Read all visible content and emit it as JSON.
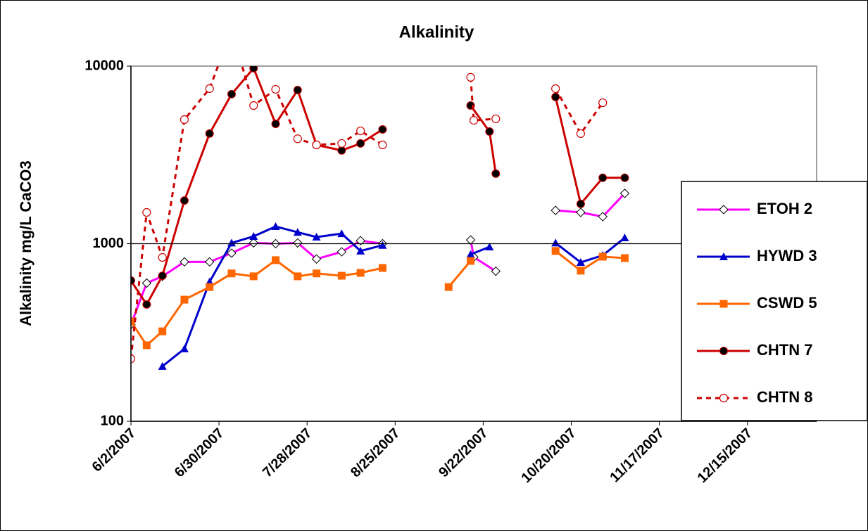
{
  "chart_data": {
    "type": "line",
    "title": "Alkalinity",
    "y_label": "Alkalinity mg/L CaCO3",
    "log_y": true,
    "grid": true,
    "legend": "right",
    "xlim": [
      "6/2/2007",
      "1/6/2008"
    ],
    "xticks": [
      "6/2/2007",
      "6/30/2007",
      "7/28/2007",
      "8/25/2007",
      "9/22/2007",
      "10/20/2007",
      "11/17/2007",
      "12/15/2007"
    ],
    "ylim": [
      100,
      10000
    ],
    "yticks": [
      100,
      1000,
      10000
    ],
    "series": [
      {
        "name": "ETOH 2",
        "color": "#ff00ff",
        "marker": "diamond",
        "dashed": false,
        "x": [
          "6/2/2007",
          "6/7/2007",
          "6/12/2007",
          "6/19/2007",
          "6/27/2007",
          "7/4/2007",
          "7/11/2007",
          "7/18/2007",
          "7/25/2007",
          "7/31/2007",
          "8/8/2007",
          "8/14/2007",
          "8/21/2007",
          null,
          "9/18/2007",
          "9/19/2007",
          "9/26/2007",
          null,
          "10/15/2007",
          "10/23/2007",
          "10/30/2007",
          "11/6/2007"
        ],
        "values": [
          350,
          600,
          655,
          790,
          790,
          885,
          1010,
          1000,
          1010,
          820,
          900,
          1040,
          1000,
          null,
          1050,
          840,
          700,
          null,
          1540,
          1500,
          1420,
          1920
        ]
      },
      {
        "name": "HYWD 3",
        "color": "#0000cc",
        "marker": "triangle",
        "dashed": false,
        "x": [
          "6/12/2007",
          "6/19/2007",
          "6/27/2007",
          "7/4/2007",
          "7/11/2007",
          "7/18/2007",
          "7/25/2007",
          "7/31/2007",
          "8/8/2007",
          "8/14/2007",
          "8/21/2007",
          null,
          "9/18/2007",
          "9/24/2007",
          null,
          "10/15/2007",
          "10/23/2007",
          "10/30/2007",
          "11/6/2007"
        ],
        "values": [
          204,
          256,
          610,
          1010,
          1100,
          1250,
          1160,
          1090,
          1140,
          910,
          980,
          null,
          870,
          960,
          null,
          1010,
          785,
          860,
          1080
        ]
      },
      {
        "name": "CSWD 5",
        "color": "#ff6600",
        "marker": "square",
        "dashed": false,
        "x": [
          "6/2/2007",
          "6/7/2007",
          "6/12/2007",
          "6/19/2007",
          "6/27/2007",
          "7/4/2007",
          "7/11/2007",
          "7/18/2007",
          "7/25/2007",
          "7/31/2007",
          "8/8/2007",
          "8/14/2007",
          "8/21/2007",
          null,
          "9/11/2007",
          "9/18/2007",
          null,
          "10/15/2007",
          "10/23/2007",
          "10/30/2007",
          "11/6/2007"
        ],
        "values": [
          365,
          268,
          321,
          484,
          570,
          680,
          655,
          808,
          655,
          680,
          660,
          685,
          730,
          null,
          570,
          800,
          null,
          910,
          705,
          845,
          830
        ]
      },
      {
        "name": "CHTN 7",
        "color": "#cc0000",
        "marker": "dot",
        "dashed": false,
        "x": [
          "6/2/2007",
          "6/7/2007",
          "6/12/2007",
          "6/19/2007",
          "6/27/2007",
          "7/4/2007",
          "7/11/2007",
          "7/18/2007",
          "7/25/2007",
          "7/31/2007",
          "8/8/2007",
          "8/14/2007",
          "8/21/2007",
          null,
          "9/18/2007",
          "9/24/2007",
          "9/26/2007",
          null,
          "10/15/2007",
          "10/23/2007",
          "10/30/2007",
          "11/6/2007"
        ],
        "values": [
          620,
          455,
          660,
          1750,
          4170,
          6950,
          9730,
          4730,
          7330,
          3600,
          3350,
          3670,
          4400,
          null,
          6000,
          4280,
          2480,
          null,
          6700,
          1675,
          2350,
          2350
        ]
      },
      {
        "name": "CHTN 8",
        "color": "#cc0000",
        "marker": "ring",
        "dashed": true,
        "x": [
          "6/2/2007",
          "6/7/2007",
          "6/12/2007",
          "6/19/2007",
          "6/27/2007",
          "7/4/2007",
          "7/11/2007",
          "7/18/2007",
          "7/25/2007",
          "7/31/2007",
          "8/8/2007",
          "8/14/2007",
          "8/21/2007",
          null,
          "9/18/2007",
          "9/19/2007",
          "9/26/2007",
          null,
          "10/15/2007",
          "10/23/2007",
          "10/30/2007"
        ],
        "values": [
          225,
          1500,
          837,
          5000,
          7470,
          16000,
          6000,
          7400,
          3900,
          3600,
          3670,
          4320,
          3600,
          null,
          8650,
          4950,
          5050,
          null,
          7470,
          4170,
          6220
        ]
      }
    ]
  }
}
